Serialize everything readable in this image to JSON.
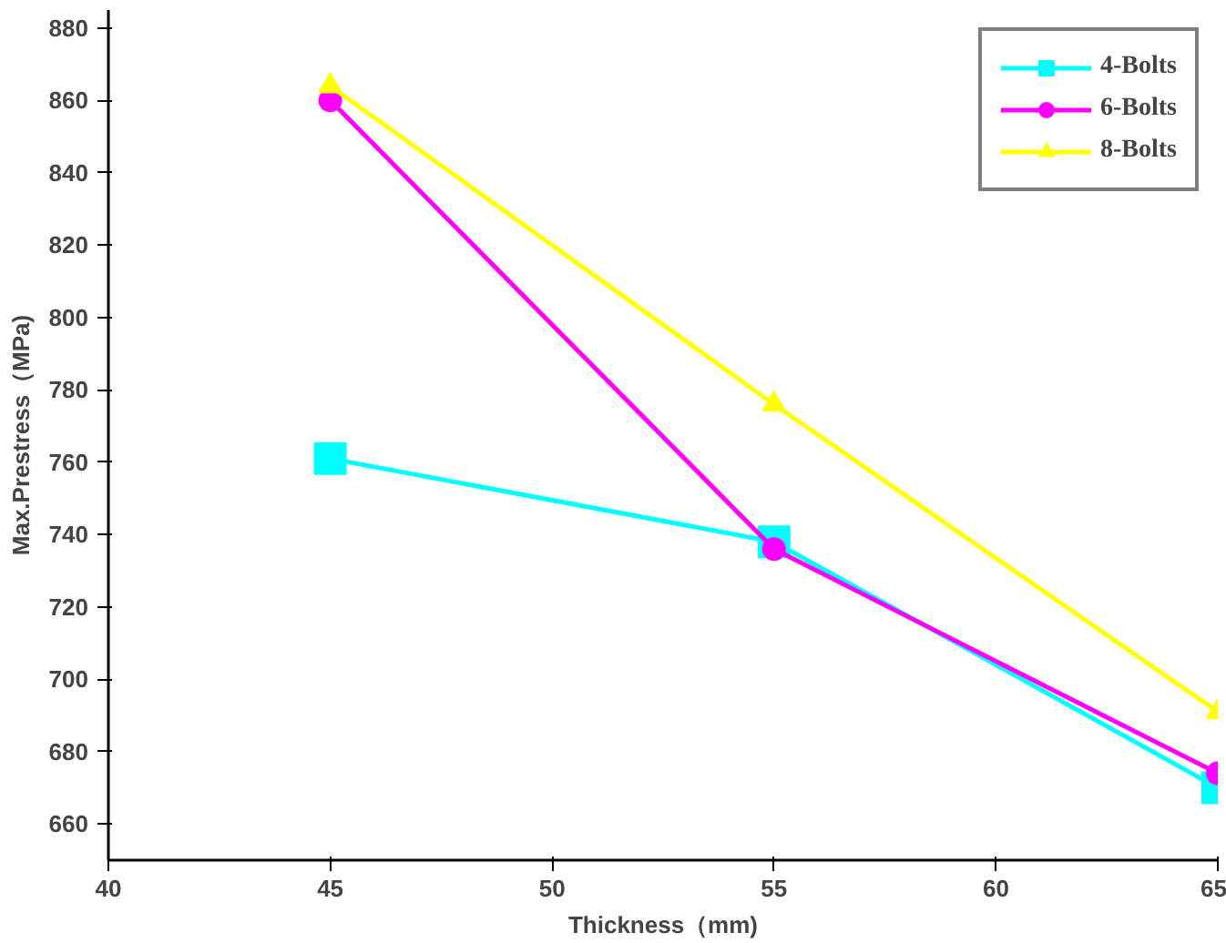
{
  "chart_data": {
    "type": "line",
    "xlabel": "Thickness（mm)",
    "ylabel": "Max.Prestress（MPa)",
    "x": [
      45,
      55,
      65
    ],
    "series": [
      {
        "name": "4-Bolts",
        "color": "#00ffff",
        "marker": "square",
        "values": [
          761,
          738,
          670
        ]
      },
      {
        "name": "6-Bolts",
        "color": "#ff00ff",
        "marker": "circle",
        "values": [
          860,
          736,
          674
        ]
      },
      {
        "name": "8-Bolts",
        "color": "#ffff00",
        "marker": "triangle",
        "values": [
          864,
          776,
          691
        ]
      }
    ],
    "xlim": [
      40,
      65
    ],
    "xticks": [
      40,
      45,
      50,
      55,
      60,
      65
    ],
    "ylim": [
      650,
      885
    ],
    "yticks": [
      660,
      680,
      700,
      720,
      740,
      760,
      780,
      800,
      820,
      840,
      860,
      880
    ],
    "grid": false,
    "legend": "top right",
    "line_style": "solid"
  }
}
